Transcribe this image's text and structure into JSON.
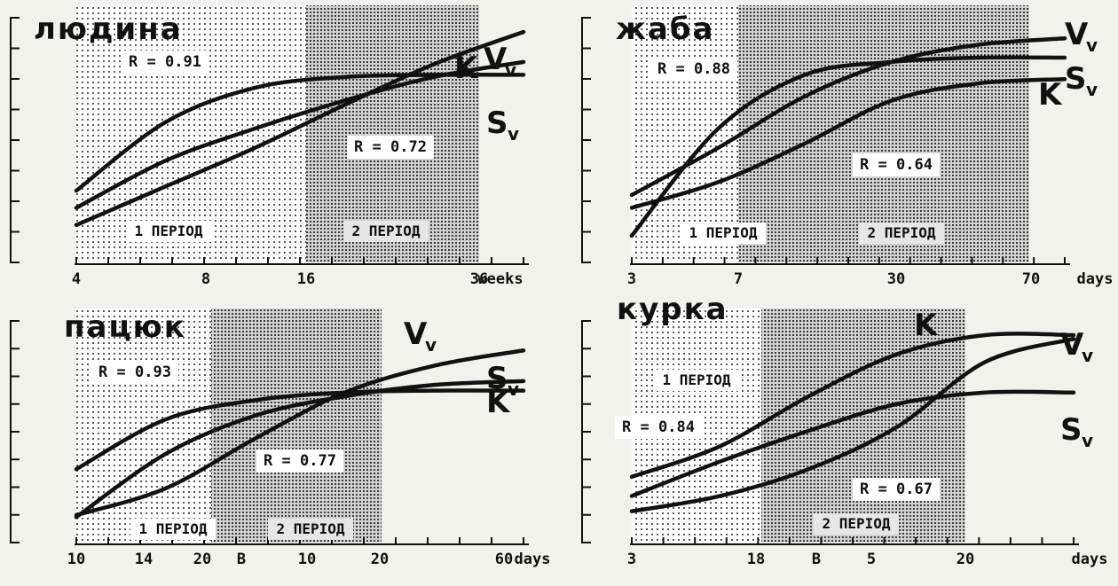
{
  "chart_data": [
    {
      "type": "line",
      "title": "людина",
      "x_unit": "weeks",
      "x_ticks": [
        "4",
        "8",
        "16",
        "36"
      ],
      "periods": [
        {
          "label": "1 ПЕРІОД",
          "from": "4",
          "to": "16"
        },
        {
          "label": "2 ПЕРІОД",
          "from": "16",
          "to": "36"
        }
      ],
      "annotations": [
        "R = 0.91",
        "R = 0.72"
      ],
      "series": [
        {
          "name": "V",
          "subscript": "v",
          "values": [
            0.1,
            0.28,
            0.46,
            0.66,
            0.85,
            1.0
          ]
        },
        {
          "name": "K",
          "values": [
            0.18,
            0.4,
            0.55,
            0.68,
            0.79,
            0.86
          ]
        },
        {
          "name": "S",
          "subscript": "v",
          "values": [
            0.26,
            0.58,
            0.74,
            0.79,
            0.8,
            0.8
          ]
        }
      ],
      "legend": "right"
    },
    {
      "type": "line",
      "title": "жаба",
      "x_unit": "days",
      "x_ticks": [
        "3",
        "7",
        "30",
        "70"
      ],
      "periods": [
        {
          "label": "1 ПЕРІОД",
          "from": "3",
          "to": "7"
        },
        {
          "label": "2 ПЕРІОД",
          "from": "7",
          "to": "70"
        }
      ],
      "annotations": [
        "R = 0.88",
        "R = 0.64"
      ],
      "series": [
        {
          "name": "V",
          "subscript": "v",
          "values": [
            0.24,
            0.46,
            0.7,
            0.86,
            0.94,
            0.97
          ]
        },
        {
          "name": "S",
          "subscript": "v",
          "values": [
            0.05,
            0.55,
            0.8,
            0.86,
            0.88,
            0.88
          ]
        },
        {
          "name": "K",
          "values": [
            0.18,
            0.3,
            0.48,
            0.68,
            0.76,
            0.78
          ]
        }
      ],
      "legend": "right"
    },
    {
      "type": "line",
      "title": "пацюк",
      "x_unit": "days",
      "x_ticks": [
        "10",
        "14",
        "20",
        "B",
        "10",
        "20",
        "60"
      ],
      "periods": [
        {
          "label": "1 ПЕРІОД",
          "from": "10",
          "to": "B"
        },
        {
          "label": "2 ПЕРІОД",
          "from": "B",
          "to": "20"
        }
      ],
      "annotations": [
        "R = 0.93",
        "R = 0.77"
      ],
      "series": [
        {
          "name": "V",
          "subscript": "v",
          "values": [
            0.06,
            0.2,
            0.46,
            0.7,
            0.84,
            0.92
          ]
        },
        {
          "name": "S",
          "subscript": "v",
          "values": [
            0.05,
            0.38,
            0.58,
            0.68,
            0.74,
            0.76
          ]
        },
        {
          "name": "K",
          "values": [
            0.3,
            0.56,
            0.66,
            0.7,
            0.71,
            0.71
          ]
        }
      ],
      "legend": "right"
    },
    {
      "type": "line",
      "title": "курка",
      "x_unit": "days",
      "x_ticks": [
        "3",
        "18",
        "B",
        "5",
        "20"
      ],
      "periods": [
        {
          "label": "1 ПЕРІОД",
          "from": "3",
          "to": "18"
        },
        {
          "label": "2 ПЕРІОД",
          "from": "18",
          "to": "20"
        }
      ],
      "annotations": [
        "R = 0.84",
        "R = 0.67"
      ],
      "series": [
        {
          "name": "K",
          "values": [
            0.26,
            0.42,
            0.68,
            0.9,
            1.0,
            1.0
          ]
        },
        {
          "name": "V",
          "subscript": "v",
          "values": [
            0.08,
            0.16,
            0.3,
            0.52,
            0.86,
            0.98
          ]
        },
        {
          "name": "S",
          "subscript": "v",
          "values": [
            0.16,
            0.34,
            0.5,
            0.64,
            0.7,
            0.7
          ]
        }
      ],
      "legend": "right"
    }
  ]
}
